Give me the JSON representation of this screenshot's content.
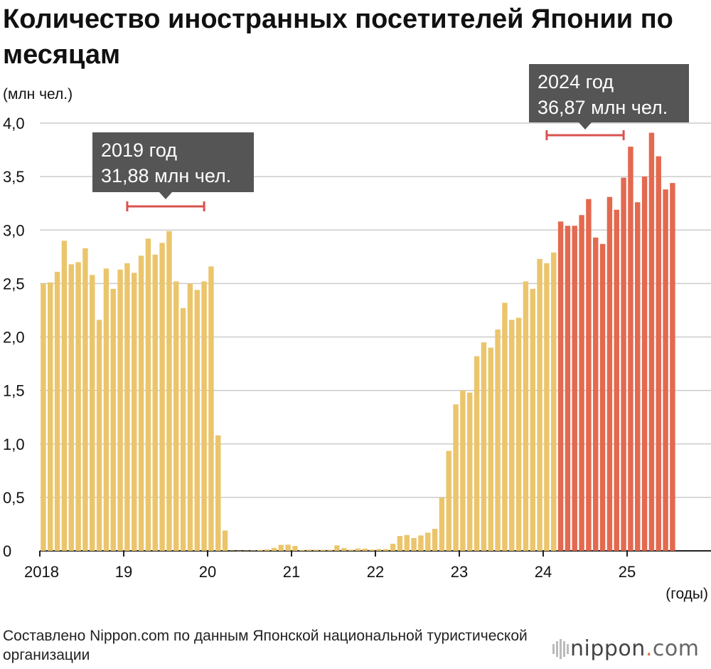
{
  "title": "Количество иностранных посетителей Японии по месяцам",
  "source": "Составлено Nippon.com по данным Японской национальной туристической организации",
  "logo": "nippon.com",
  "colors": {
    "base": "#ebc56c",
    "highlight": "#e3694f",
    "grid": "#cccccc",
    "axis": "#222222",
    "bracket": "#d9534f",
    "callout": "#555555"
  },
  "chart_data": {
    "type": "bar",
    "ylabel": "(млн чел.)",
    "xlabel": "(годы)",
    "ylim": [
      0,
      4.0
    ],
    "yticks": [
      "4,0",
      "3,5",
      "3,0",
      "2,5",
      "2,0",
      "1,5",
      "1,0",
      "0,5",
      "0"
    ],
    "year_labels": [
      "2018",
      "19",
      "20",
      "21",
      "22",
      "23",
      "24",
      "25"
    ],
    "grid": true,
    "start_month": "2018-01",
    "highlight_from": "2024-03",
    "values": [
      2.5,
      2.51,
      2.61,
      2.9,
      2.68,
      2.7,
      2.83,
      2.58,
      2.16,
      2.64,
      2.45,
      2.63,
      2.69,
      2.6,
      2.76,
      2.92,
      2.77,
      2.88,
      2.99,
      2.52,
      2.27,
      2.5,
      2.44,
      2.52,
      2.66,
      1.08,
      0.19,
      0.003,
      0.002,
      0.003,
      0.004,
      0.009,
      0.014,
      0.028,
      0.056,
      0.058,
      0.046,
      0.007,
      0.012,
      0.011,
      0.01,
      0.01,
      0.051,
      0.026,
      0.012,
      0.022,
      0.021,
      0.012,
      0.017,
      0.017,
      0.066,
      0.139,
      0.148,
      0.12,
      0.144,
      0.17,
      0.206,
      0.499,
      0.935,
      1.37,
      1.5,
      1.48,
      1.82,
      1.95,
      1.9,
      2.07,
      2.32,
      2.16,
      2.18,
      2.52,
      2.45,
      2.73,
      2.69,
      2.79,
      3.08,
      3.04,
      3.04,
      3.14,
      3.29,
      2.93,
      2.87,
      3.31,
      3.19,
      3.49,
      3.78,
      3.26,
      3.5,
      3.91,
      3.69,
      3.38,
      3.44
    ],
    "annotations": [
      {
        "label": "2019 год",
        "value": "31,88 млн чел.",
        "year": "2019"
      },
      {
        "label": "2024 год",
        "value": "36,87 млн чел.",
        "year": "2024"
      }
    ]
  }
}
